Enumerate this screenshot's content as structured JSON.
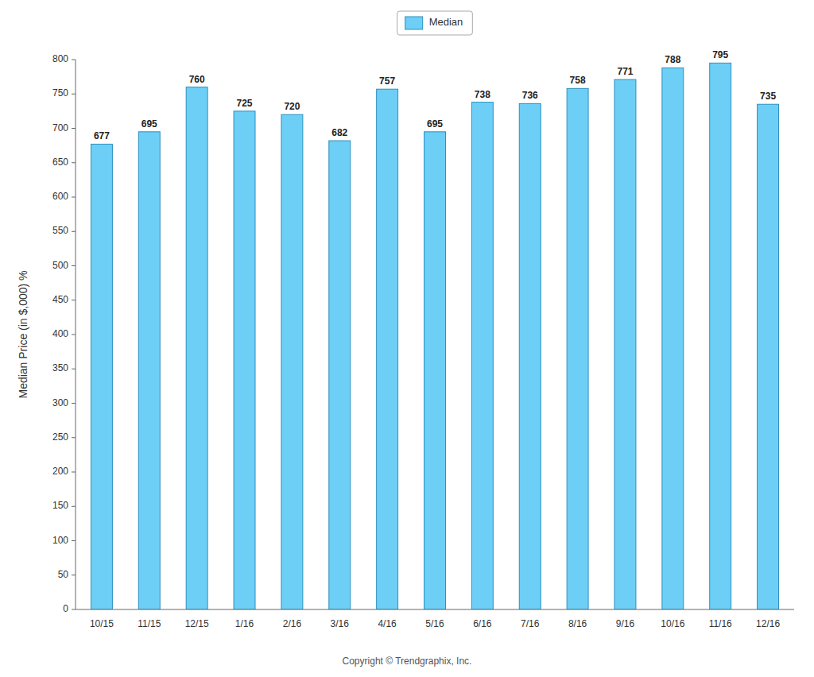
{
  "chart_data": {
    "type": "bar",
    "categories": [
      "10/15",
      "11/15",
      "12/15",
      "1/16",
      "2/16",
      "3/16",
      "4/16",
      "5/16",
      "6/16",
      "7/16",
      "8/16",
      "9/16",
      "10/16",
      "11/16",
      "12/16"
    ],
    "series": [
      {
        "name": "Median",
        "color": "#6ECFF6",
        "values": [
          677,
          695,
          760,
          725,
          720,
          682,
          757,
          695,
          738,
          736,
          758,
          771,
          788,
          795,
          735
        ]
      }
    ],
    "ylabel": "Median Price (in $,000) %",
    "ylim": [
      0,
      800
    ],
    "yticks": [
      0,
      50,
      100,
      150,
      200,
      250,
      300,
      350,
      400,
      450,
      500,
      550,
      600,
      650,
      700,
      750,
      800
    ],
    "grid": false,
    "legend": "top",
    "data_labels": true,
    "annotations": [
      "Copyright © Trendgraphix, Inc."
    ]
  }
}
